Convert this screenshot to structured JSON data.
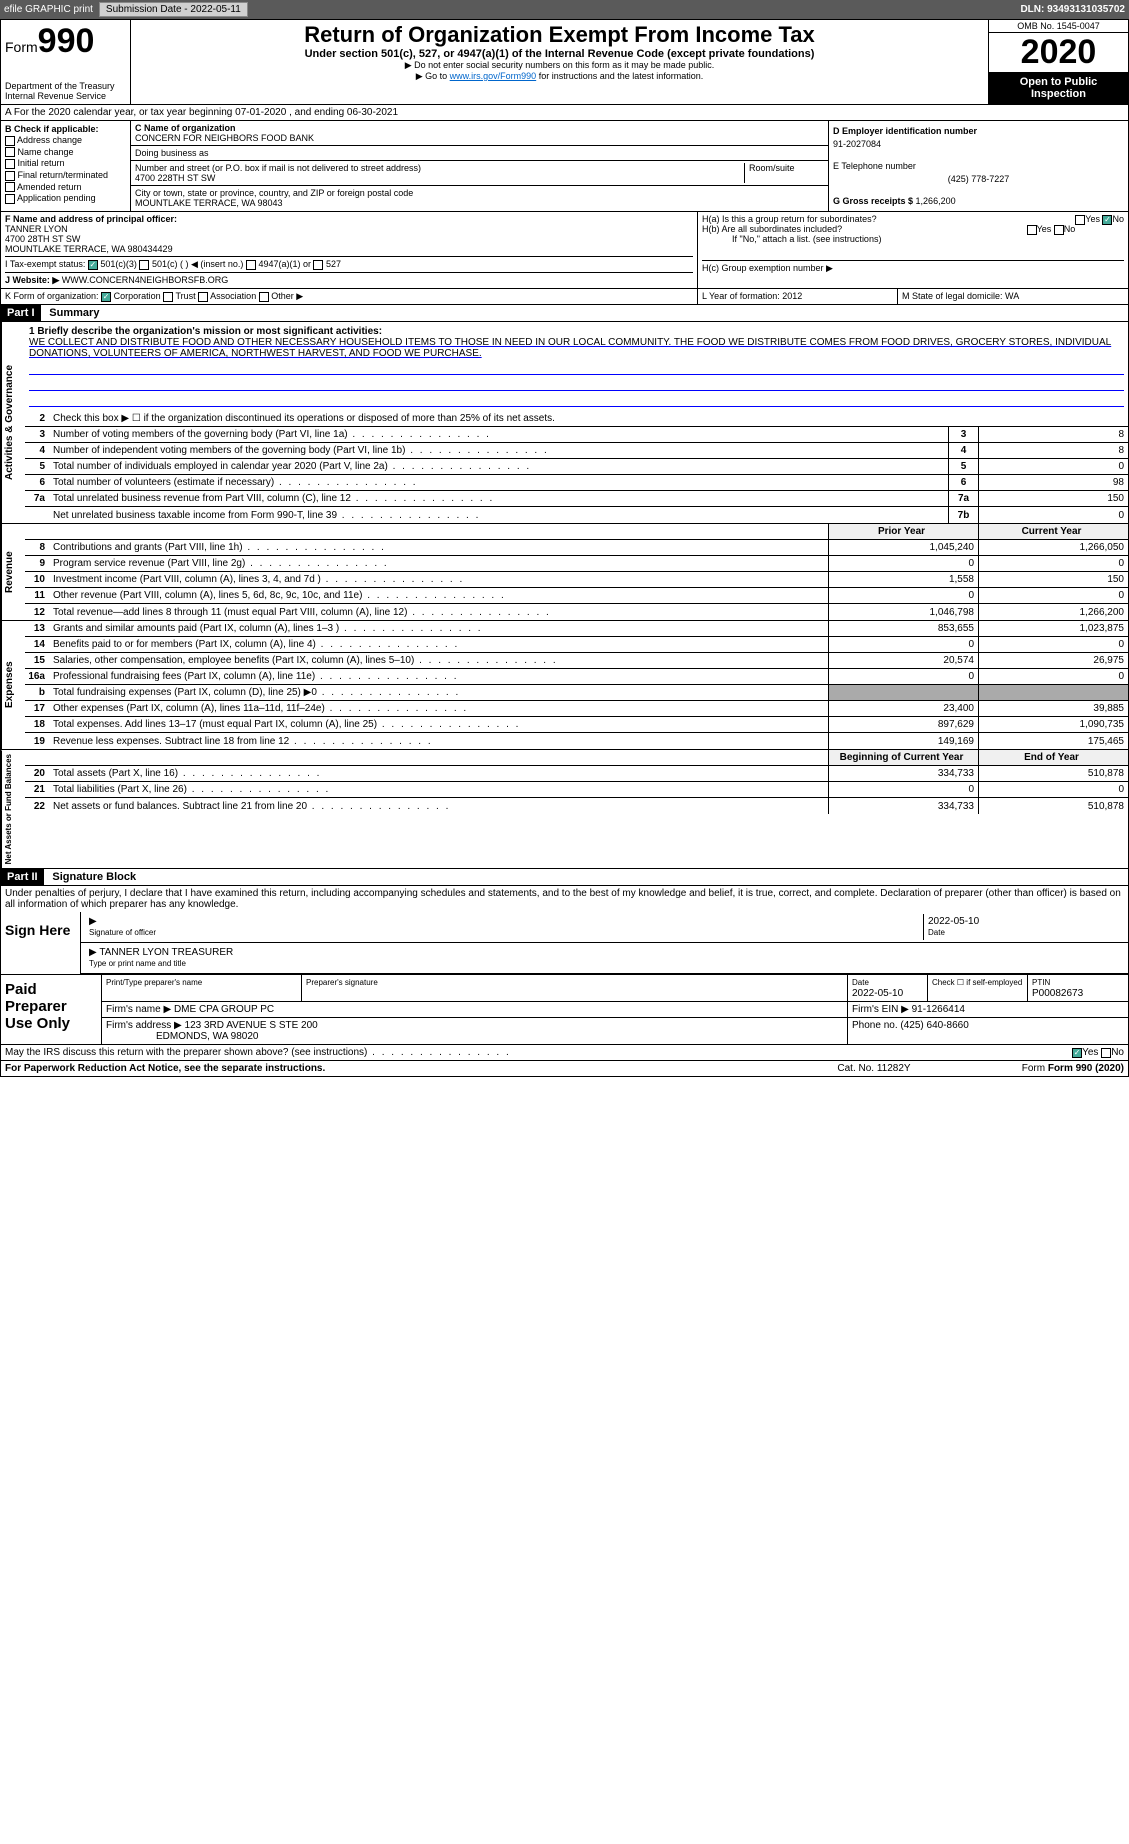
{
  "topbar": {
    "efile": "efile GRAPHIC print",
    "sub_label": "Submission Date - ",
    "sub_date": "2022-05-11",
    "dln_label": "DLN: ",
    "dln": "93493131035702"
  },
  "header": {
    "form": "Form",
    "num": "990",
    "dept": "Department of the Treasury Internal Revenue Service",
    "title": "Return of Organization Exempt From Income Tax",
    "sub": "Under section 501(c), 527, or 4947(a)(1) of the Internal Revenue Code (except private foundations)",
    "note1": "▶ Do not enter social security numbers on this form as it may be made public.",
    "note2": "▶ Go to ",
    "note2link": "www.irs.gov/Form990",
    "note2b": " for instructions and the latest information.",
    "omb": "OMB No. 1545-0047",
    "year": "2020",
    "pub": "Open to Public Inspection"
  },
  "rowA": "A For the 2020 calendar year, or tax year beginning 07-01-2020    , and ending 06-30-2021",
  "colB": {
    "hdr": "B Check if applicable:",
    "addr": "Address change",
    "name": "Name change",
    "init": "Initial return",
    "final": "Final return/terminated",
    "amend": "Amended return",
    "app": "Application pending"
  },
  "colC": {
    "name_lbl": "C Name of organization",
    "name": "CONCERN FOR NEIGHBORS FOOD BANK",
    "dba_lbl": "Doing business as",
    "dba": "",
    "street_lbl": "Number and street (or P.O. box if mail is not delivered to street address)",
    "room_lbl": "Room/suite",
    "street": "4700 228TH ST SW",
    "city_lbl": "City or town, state or province, country, and ZIP or foreign postal code",
    "city": "MOUNTLAKE TERRACE, WA  98043"
  },
  "colD": {
    "ein_lbl": "D Employer identification number",
    "ein": "91-2027084",
    "tel_lbl": "E Telephone number",
    "tel": "(425) 778-7227",
    "gross_lbl": "G Gross receipts $ ",
    "gross": "1,266,200"
  },
  "rowF": {
    "lbl": "F  Name and address of principal officer:",
    "name": "TANNER LYON",
    "addr1": "4700 28TH ST SW",
    "addr2": "MOUNTLAKE TERRACE, WA  980434429"
  },
  "rowH": {
    "ha": "H(a)  Is this a group return for subordinates?",
    "hb": "H(b)  Are all subordinates included?",
    "hb2": "If \"No,\" attach a list. (see instructions)",
    "hc": "H(c)  Group exemption number ▶",
    "yes": "Yes",
    "no": "No"
  },
  "rowI": {
    "lbl": "I    Tax-exempt status:",
    "c3": "501(c)(3)",
    "c": "501(c) (  ) ◀ (insert no.)",
    "a1": "4947(a)(1) or",
    "527": "527"
  },
  "rowJ": {
    "lbl": "J   Website: ▶",
    "val": "WWW.CONCERN4NEIGHBORSFB.ORG"
  },
  "rowK": {
    "lbl": "K Form of organization:",
    "corp": "Corporation",
    "trust": "Trust",
    "assoc": "Association",
    "other": "Other ▶",
    "L": "L Year of formation: 2012",
    "M": "M State of legal domicile: WA"
  },
  "part1": {
    "hdr": "Part I",
    "title": "Summary",
    "l1": "1  Briefly describe the organization's mission or most significant activities:",
    "mission": "WE COLLECT AND DISTRIBUTE FOOD AND OTHER NECESSARY HOUSEHOLD ITEMS TO THOSE IN NEED IN OUR LOCAL COMMUNITY. THE FOOD WE DISTRIBUTE COMES FROM FOOD DRIVES, GROCERY STORES, INDIVIDUAL DONATIONS, VOLUNTEERS OF AMERICA, NORTHWEST HARVEST, AND FOOD WE PURCHASE.",
    "l2": "Check this box ▶ ☐  if the organization discontinued its operations or disposed of more than 25% of its net assets.",
    "lines": [
      {
        "n": "3",
        "t": "Number of voting members of the governing body (Part VI, line 1a)",
        "b": "3",
        "v": "8"
      },
      {
        "n": "4",
        "t": "Number of independent voting members of the governing body (Part VI, line 1b)",
        "b": "4",
        "v": "8"
      },
      {
        "n": "5",
        "t": "Total number of individuals employed in calendar year 2020 (Part V, line 2a)",
        "b": "5",
        "v": "0"
      },
      {
        "n": "6",
        "t": "Total number of volunteers (estimate if necessary)",
        "b": "6",
        "v": "98"
      },
      {
        "n": "7a",
        "t": "Total unrelated business revenue from Part VIII, column (C), line 12",
        "b": "7a",
        "v": "150"
      },
      {
        "n": "",
        "t": "Net unrelated business taxable income from Form 990-T, line 39",
        "b": "7b",
        "v": "0"
      }
    ],
    "prior": "Prior Year",
    "current": "Current Year",
    "rev": [
      {
        "n": "8",
        "t": "Contributions and grants (Part VIII, line 1h)",
        "p": "1,045,240",
        "c": "1,266,050"
      },
      {
        "n": "9",
        "t": "Program service revenue (Part VIII, line 2g)",
        "p": "0",
        "c": "0"
      },
      {
        "n": "10",
        "t": "Investment income (Part VIII, column (A), lines 3, 4, and 7d )",
        "p": "1,558",
        "c": "150"
      },
      {
        "n": "11",
        "t": "Other revenue (Part VIII, column (A), lines 5, 6d, 8c, 9c, 10c, and 11e)",
        "p": "0",
        "c": "0"
      },
      {
        "n": "12",
        "t": "Total revenue—add lines 8 through 11 (must equal Part VIII, column (A), line 12)",
        "p": "1,046,798",
        "c": "1,266,200"
      }
    ],
    "exp": [
      {
        "n": "13",
        "t": "Grants and similar amounts paid (Part IX, column (A), lines 1–3 )",
        "p": "853,655",
        "c": "1,023,875"
      },
      {
        "n": "14",
        "t": "Benefits paid to or for members (Part IX, column (A), line 4)",
        "p": "0",
        "c": "0"
      },
      {
        "n": "15",
        "t": "Salaries, other compensation, employee benefits (Part IX, column (A), lines 5–10)",
        "p": "20,574",
        "c": "26,975"
      },
      {
        "n": "16a",
        "t": "Professional fundraising fees (Part IX, column (A), line 11e)",
        "p": "0",
        "c": "0"
      },
      {
        "n": "b",
        "t": "Total fundraising expenses (Part IX, column (D), line 25) ▶0",
        "p": "",
        "c": "",
        "shade": true
      },
      {
        "n": "17",
        "t": "Other expenses (Part IX, column (A), lines 11a–11d, 11f–24e)",
        "p": "23,400",
        "c": "39,885"
      },
      {
        "n": "18",
        "t": "Total expenses. Add lines 13–17 (must equal Part IX, column (A), line 25)",
        "p": "897,629",
        "c": "1,090,735"
      },
      {
        "n": "19",
        "t": "Revenue less expenses. Subtract line 18 from line 12",
        "p": "149,169",
        "c": "175,465"
      }
    ],
    "begin": "Beginning of Current Year",
    "end": "End of Year",
    "net": [
      {
        "n": "20",
        "t": "Total assets (Part X, line 16)",
        "p": "334,733",
        "c": "510,878"
      },
      {
        "n": "21",
        "t": "Total liabilities (Part X, line 26)",
        "p": "0",
        "c": "0"
      },
      {
        "n": "22",
        "t": "Net assets or fund balances. Subtract line 21 from line 20",
        "p": "334,733",
        "c": "510,878"
      }
    ],
    "tab_gov": "Activities & Governance",
    "tab_rev": "Revenue",
    "tab_exp": "Expenses",
    "tab_net": "Net Assets or Fund Balances"
  },
  "part2": {
    "hdr": "Part II",
    "title": "Signature Block",
    "pen": "Under penalties of perjury, I declare that I have examined this return, including accompanying schedules and statements, and to the best of my knowledge and belief, it is true, correct, and complete. Declaration of preparer (other than officer) is based on all information of which preparer has any knowledge.",
    "sign": "Sign Here",
    "sig_lbl": "Signature of officer",
    "date_lbl": "Date",
    "sig_date": "2022-05-10",
    "name_lbl": "Type or print name and title",
    "name": "TANNER LYON  TREASURER",
    "paid": "Paid Preparer Use Only",
    "pp_name_lbl": "Print/Type preparer's name",
    "pp_sig_lbl": "Preparer's signature",
    "pp_date_lbl": "Date",
    "pp_date": "2022-05-10",
    "pp_check": "Check ☐ if self-employed",
    "ptin_lbl": "PTIN",
    "ptin": "P00082673",
    "firm_lbl": "Firm's name    ▶",
    "firm": "DME CPA GROUP PC",
    "fein_lbl": "Firm's EIN ▶",
    "fein": "91-1266414",
    "faddr_lbl": "Firm's address ▶",
    "faddr1": "123 3RD AVENUE S STE 200",
    "faddr2": "EDMONDS, WA  98020",
    "phone_lbl": "Phone no.",
    "phone": "(425) 640-8660",
    "may": "May the IRS discuss this return with the preparer shown above? (see instructions)",
    "yes": "Yes",
    "no": "No"
  },
  "footer": {
    "l": "For Paperwork Reduction Act Notice, see the separate instructions.",
    "m": "Cat. No. 11282Y",
    "r": "Form 990 (2020)"
  },
  "colors": {
    "link": "#0066cc",
    "check": "#4a9"
  }
}
